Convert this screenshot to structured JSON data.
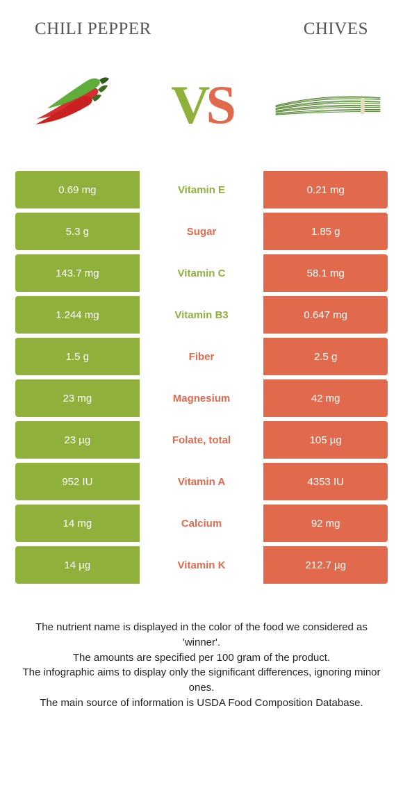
{
  "colors": {
    "left": "#8fb13b",
    "right": "#e1694c",
    "leftText": "#8fb13b",
    "rightText": "#e1694c"
  },
  "header": {
    "leftTitle": "CHILI PEPPER",
    "rightTitle": "CHIVES"
  },
  "vs": {
    "v": "V",
    "s": "S"
  },
  "rows": [
    {
      "left": "0.69 mg",
      "name": "Vitamin E",
      "right": "0.21 mg",
      "winner": "left"
    },
    {
      "left": "5.3 g",
      "name": "Sugar",
      "right": "1.85 g",
      "winner": "right"
    },
    {
      "left": "143.7 mg",
      "name": "Vitamin C",
      "right": "58.1 mg",
      "winner": "left"
    },
    {
      "left": "1.244 mg",
      "name": "Vitamin B3",
      "right": "0.647 mg",
      "winner": "left"
    },
    {
      "left": "1.5 g",
      "name": "Fiber",
      "right": "2.5 g",
      "winner": "right"
    },
    {
      "left": "23 mg",
      "name": "Magnesium",
      "right": "42 mg",
      "winner": "right"
    },
    {
      "left": "23 µg",
      "name": "Folate, total",
      "right": "105 µg",
      "winner": "right"
    },
    {
      "left": "952 IU",
      "name": "Vitamin A",
      "right": "4353 IU",
      "winner": "right"
    },
    {
      "left": "14 mg",
      "name": "Calcium",
      "right": "92 mg",
      "winner": "right"
    },
    {
      "left": "14 µg",
      "name": "Vitamin K",
      "right": "212.7 µg",
      "winner": "right"
    }
  ],
  "footnotes": [
    "The nutrient name is displayed in the color of the food we considered as 'winner'.",
    "The amounts are specified per 100 gram of the product.",
    "The infographic aims to display only the significant differences, ignoring minor ones.",
    "The main source of information is USDA Food Composition Database."
  ]
}
